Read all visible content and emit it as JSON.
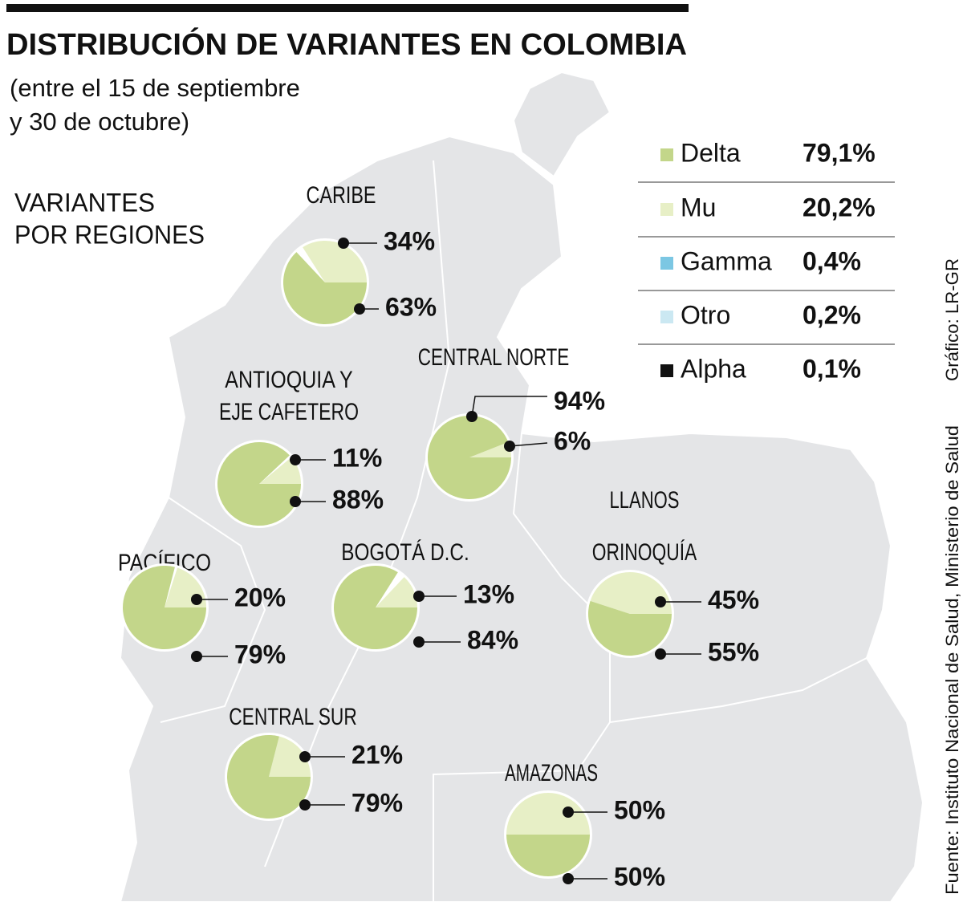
{
  "title": "DISTRIBUCIÓN DE VARIANTES EN COLOMBIA",
  "subtitle": [
    "(entre el 15 de septiembre",
    "y 30 de octubre)"
  ],
  "section_label": [
    "VARIANTES",
    "POR REGIONES"
  ],
  "legend": [
    {
      "name": "Delta",
      "color": "#c3d68a",
      "value": 79.1,
      "value_label": "79,1%"
    },
    {
      "name": "Mu",
      "color": "#e7efc6",
      "value": 20.2,
      "value_label": "20,2%"
    },
    {
      "name": "Gamma",
      "color": "#7cc7e3",
      "value": 0.4,
      "value_label": "0,4%"
    },
    {
      "name": "Otro",
      "color": "#cbe8f2",
      "value": 0.2,
      "value_label": "0,2%"
    },
    {
      "name": "Alpha",
      "color": "#111111",
      "value": 0.1,
      "value_label": "0,1%"
    }
  ],
  "regions": [
    {
      "name": [
        "CARIBE"
      ],
      "values": [
        34,
        63
      ],
      "value_labels": [
        "34%",
        "63%"
      ]
    },
    {
      "name": [
        "ANTIOQUIA Y",
        "EJE CAFETERO"
      ],
      "values": [
        11,
        88
      ],
      "value_labels": [
        "11%",
        "88%"
      ]
    },
    {
      "name": [
        "CENTRAL NORTE"
      ],
      "values": [
        6,
        94
      ],
      "value_labels": [
        "6%",
        "94%"
      ]
    },
    {
      "name": [
        "PACÍFICO"
      ],
      "values": [
        20,
        79
      ],
      "value_labels": [
        "20%",
        "79%"
      ]
    },
    {
      "name": [
        "BOGOTÁ D.C."
      ],
      "values": [
        13,
        84
      ],
      "value_labels": [
        "13%",
        "84%"
      ]
    },
    {
      "name": [
        "LLANOS",
        "ORINOQUÍA"
      ],
      "values": [
        45,
        55
      ],
      "value_labels": [
        "45%",
        "55%"
      ]
    },
    {
      "name": [
        "CENTRAL SUR"
      ],
      "values": [
        21,
        79
      ],
      "value_labels": [
        "21%",
        "79%"
      ]
    },
    {
      "name": [
        "AMAZONAS"
      ],
      "values": [
        50,
        50
      ],
      "value_labels": [
        "50%",
        "50%"
      ]
    }
  ],
  "source": "Fuente: Instituto Nacional de Salud, Ministerio de Salud",
  "credit": "Gráfico: LR-GR"
}
